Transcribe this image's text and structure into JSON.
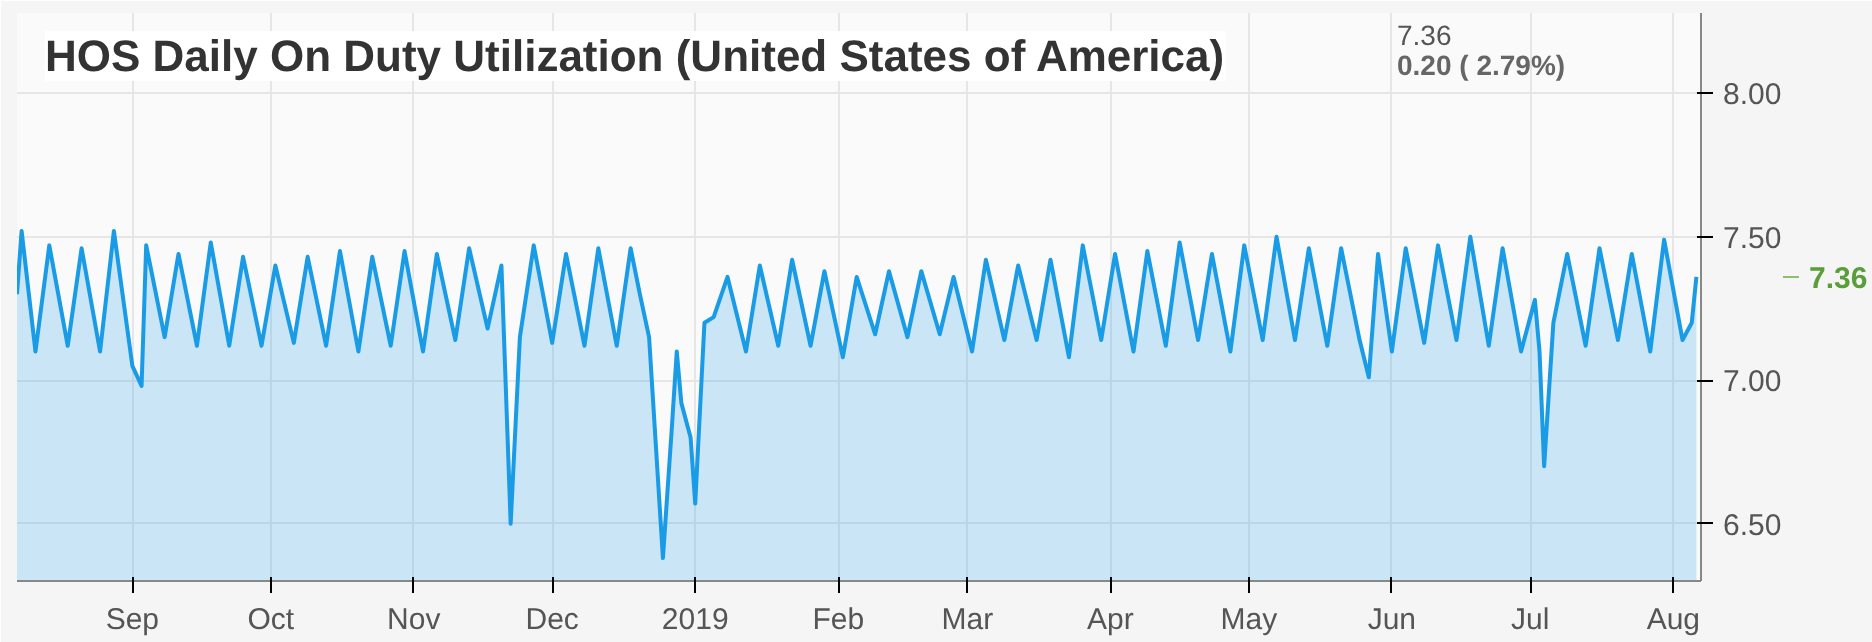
{
  "chart_data": {
    "type": "area",
    "title": "HOS Daily On Duty Utilization (United States of America)",
    "x": [
      "2018-08-07",
      "2018-08-08",
      "2018-08-11",
      "2018-08-14",
      "2018-08-18",
      "2018-08-21",
      "2018-08-25",
      "2018-08-28",
      "2018-09-01",
      "2018-09-03",
      "2018-09-04",
      "2018-09-08",
      "2018-09-11",
      "2018-09-15",
      "2018-09-18",
      "2018-09-22",
      "2018-09-25",
      "2018-09-29",
      "2018-10-02",
      "2018-10-06",
      "2018-10-09",
      "2018-10-13",
      "2018-10-16",
      "2018-10-20",
      "2018-10-23",
      "2018-10-27",
      "2018-10-30",
      "2018-11-03",
      "2018-11-06",
      "2018-11-10",
      "2018-11-13",
      "2018-11-17",
      "2018-11-20",
      "2018-11-22",
      "2018-11-24",
      "2018-11-27",
      "2018-12-01",
      "2018-12-04",
      "2018-12-08",
      "2018-12-11",
      "2018-12-15",
      "2018-12-18",
      "2018-12-20",
      "2018-12-22",
      "2018-12-25",
      "2018-12-27",
      "2018-12-28",
      "2018-12-29",
      "2018-12-31",
      "2019-01-01",
      "2019-01-03",
      "2019-01-05",
      "2019-01-08",
      "2019-01-12",
      "2019-01-15",
      "2019-01-19",
      "2019-01-22",
      "2019-01-26",
      "2019-01-29",
      "2019-02-02",
      "2019-02-05",
      "2019-02-09",
      "2019-02-12",
      "2019-02-16",
      "2019-02-19",
      "2019-02-23",
      "2019-02-26",
      "2019-03-02",
      "2019-03-05",
      "2019-03-09",
      "2019-03-12",
      "2019-03-16",
      "2019-03-19",
      "2019-03-23",
      "2019-03-26",
      "2019-03-30",
      "2019-04-02",
      "2019-04-06",
      "2019-04-09",
      "2019-04-13",
      "2019-04-16",
      "2019-04-20",
      "2019-04-23",
      "2019-04-27",
      "2019-04-30",
      "2019-05-04",
      "2019-05-07",
      "2019-05-11",
      "2019-05-14",
      "2019-05-18",
      "2019-05-21",
      "2019-05-25",
      "2019-05-27",
      "2019-05-29",
      "2019-06-01",
      "2019-06-04",
      "2019-06-08",
      "2019-06-11",
      "2019-06-15",
      "2019-06-18",
      "2019-06-22",
      "2019-06-25",
      "2019-06-29",
      "2019-07-02",
      "2019-07-03",
      "2019-07-04",
      "2019-07-06",
      "2019-07-09",
      "2019-07-13",
      "2019-07-16",
      "2019-07-20",
      "2019-07-23",
      "2019-07-27",
      "2019-07-30",
      "2019-08-03",
      "2019-08-05",
      "2019-08-06"
    ],
    "series": [
      {
        "color": "#1a9be6",
        "values": [
          7.3,
          7.52,
          7.1,
          7.47,
          7.12,
          7.46,
          7.1,
          7.52,
          7.05,
          6.98,
          7.47,
          7.15,
          7.44,
          7.12,
          7.48,
          7.12,
          7.43,
          7.12,
          7.4,
          7.13,
          7.43,
          7.12,
          7.45,
          7.1,
          7.43,
          7.12,
          7.45,
          7.1,
          7.44,
          7.14,
          7.46,
          7.18,
          7.4,
          6.5,
          7.15,
          7.47,
          7.13,
          7.44,
          7.12,
          7.46,
          7.12,
          7.46,
          7.3,
          7.15,
          6.38,
          6.85,
          7.1,
          6.92,
          6.8,
          6.57,
          7.2,
          7.22,
          7.36,
          7.1,
          7.4,
          7.12,
          7.42,
          7.12,
          7.38,
          7.08,
          7.36,
          7.16,
          7.38,
          7.15,
          7.38,
          7.16,
          7.36,
          7.1,
          7.42,
          7.14,
          7.4,
          7.14,
          7.42,
          7.08,
          7.47,
          7.14,
          7.44,
          7.1,
          7.45,
          7.12,
          7.48,
          7.14,
          7.44,
          7.1,
          7.47,
          7.14,
          7.5,
          7.14,
          7.46,
          7.12,
          7.46,
          7.14,
          7.01,
          7.44,
          7.1,
          7.46,
          7.13,
          7.47,
          7.14,
          7.5,
          7.12,
          7.46,
          7.1,
          7.28,
          7.1,
          6.7,
          7.2,
          7.44,
          7.12,
          7.46,
          7.14,
          7.44,
          7.1,
          7.49,
          7.14,
          7.2,
          7.36
        ]
      }
    ],
    "xlim": [
      "2018-08-07",
      "2019-08-07"
    ],
    "xticks": [
      {
        "value": "2018-09-01",
        "label": "Sep"
      },
      {
        "value": "2018-10-01",
        "label": "Oct"
      },
      {
        "value": "2018-11-01",
        "label": "Nov"
      },
      {
        "value": "2018-12-01",
        "label": "Dec"
      },
      {
        "value": "2019-01-01",
        "label": "2019"
      },
      {
        "value": "2019-02-01",
        "label": "Feb"
      },
      {
        "value": "2019-03-01",
        "label": "Mar"
      },
      {
        "value": "2019-04-01",
        "label": "Apr"
      },
      {
        "value": "2019-05-01",
        "label": "May"
      },
      {
        "value": "2019-06-01",
        "label": "Jun"
      },
      {
        "value": "2019-07-01",
        "label": "Jul"
      },
      {
        "value": "2019-08-01",
        "label": "Aug"
      }
    ],
    "ylim": [
      6.3,
      8.28
    ],
    "yticks": [
      {
        "value": 6.5,
        "label": "6.50"
      },
      {
        "value": 7,
        "label": "7.00"
      },
      {
        "value": 7.5,
        "label": "7.50"
      },
      {
        "value": 8,
        "label": "8.00"
      }
    ],
    "grid": true,
    "annotations": [
      "7.36",
      "0.20 ( 2.79%)",
      "7.36"
    ]
  }
}
